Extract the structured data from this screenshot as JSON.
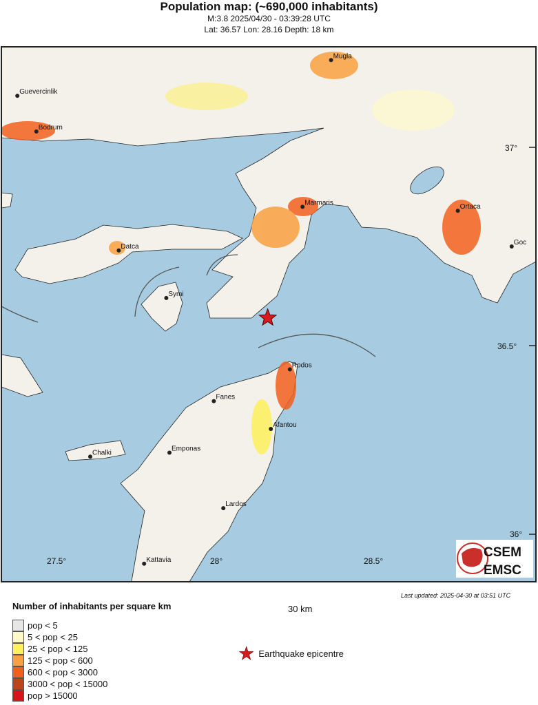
{
  "header": {
    "title": "Population map: (~690,000 inhabitants)",
    "event": "M:3.8 2025/04/30 - 03:39:28 UTC",
    "location": "Lat: 36.57 Lon: 28.16 Depth: 18 km"
  },
  "map": {
    "sea_color": "#a7cce1",
    "epicentre_color": "#d71920",
    "cities": [
      {
        "name": "Mugla",
        "lon": 28.36,
        "lat": 37.22
      },
      {
        "name": "Guevercinlik",
        "lon": 27.37,
        "lat": 37.13
      },
      {
        "name": "Bodrum",
        "lon": 27.43,
        "lat": 37.04
      },
      {
        "name": "Marmaris",
        "lon": 28.27,
        "lat": 36.85
      },
      {
        "name": "Ortaca",
        "lon": 28.76,
        "lat": 36.84
      },
      {
        "name": "Goc",
        "lon": 28.93,
        "lat": 36.75
      },
      {
        "name": "Datca",
        "lon": 27.69,
        "lat": 36.74
      },
      {
        "name": "Symi",
        "lon": 27.84,
        "lat": 36.62
      },
      {
        "name": "Rodos",
        "lon": 28.23,
        "lat": 36.44
      },
      {
        "name": "Fanes",
        "lon": 27.99,
        "lat": 36.36
      },
      {
        "name": "Afantou",
        "lon": 28.17,
        "lat": 36.29
      },
      {
        "name": "Chalki",
        "lon": 27.6,
        "lat": 36.22
      },
      {
        "name": "Emponas",
        "lon": 27.85,
        "lat": 36.23
      },
      {
        "name": "Lardos",
        "lon": 28.02,
        "lat": 36.09
      },
      {
        "name": "Kattavia",
        "lon": 27.77,
        "lat": 35.95
      }
    ],
    "lon_ticks": [
      "27.5°",
      "28°",
      "28.5°"
    ],
    "lat_ticks": [
      "37°",
      "36.5°",
      "36°"
    ],
    "scale_bar": "30 km",
    "last_updated": "Last updated: 2025-04-30 at 03:51 UTC",
    "logo_text": "CSEM EMSC"
  },
  "legend": {
    "title": "Number of inhabitants per square km",
    "items": [
      {
        "label": "pop < 5",
        "color": "#e6e6e4"
      },
      {
        "label": "5 < pop < 25",
        "color": "#fff9c8"
      },
      {
        "label": "25 < pop < 125",
        "color": "#fdf05a"
      },
      {
        "label": "125 < pop < 600",
        "color": "#f9a140"
      },
      {
        "label": "600 < pop < 3000",
        "color": "#f2601f"
      },
      {
        "label": "3000 < pop < 15000",
        "color": "#b9471a"
      },
      {
        "label": "pop > 15000",
        "color": "#d9131a"
      }
    ],
    "epicentre_label": "Earthquake epicentre"
  }
}
